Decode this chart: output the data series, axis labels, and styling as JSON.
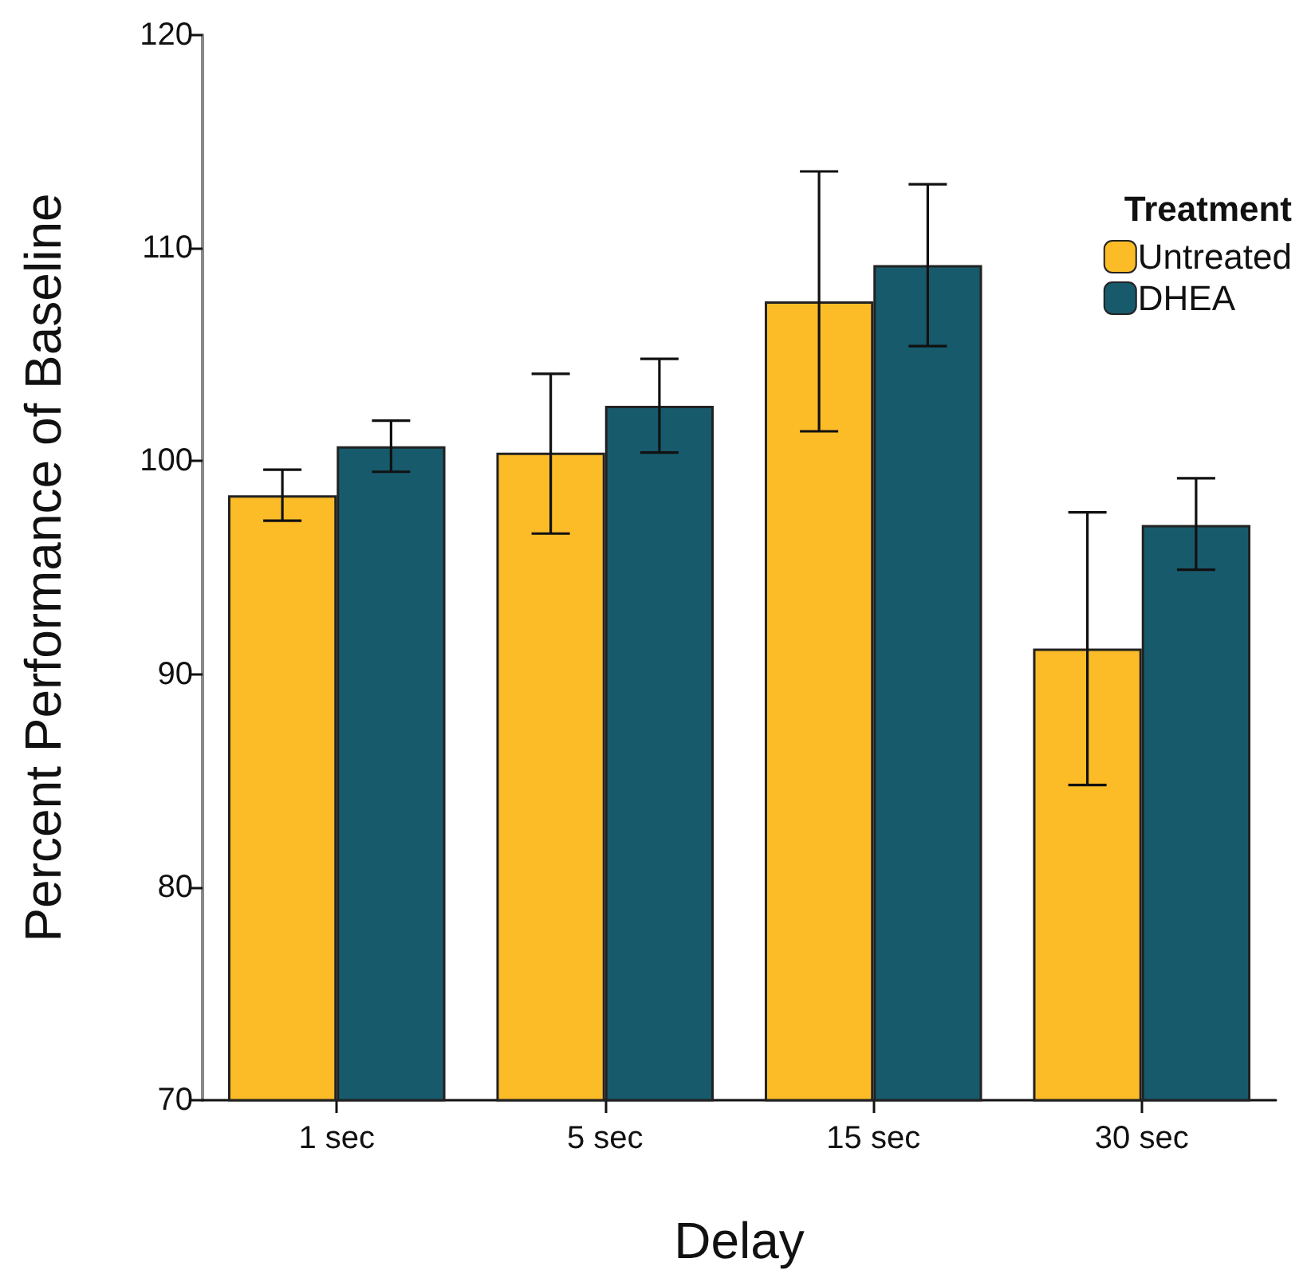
{
  "chart_data": {
    "type": "bar",
    "xlabel": "Delay",
    "ylabel": "Percent Performance of Baseline",
    "legend_title": "Treatment",
    "categories": [
      "1 sec",
      "5 sec",
      "15 sec",
      "30 sec"
    ],
    "series": [
      {
        "name": "Untreated",
        "color": "#fbbc28",
        "values": [
          98.4,
          100.4,
          107.5,
          91.2
        ],
        "errors": [
          [
            97.2,
            99.6
          ],
          [
            96.6,
            104.1
          ],
          [
            101.4,
            113.6
          ],
          [
            84.8,
            97.6
          ]
        ]
      },
      {
        "name": "DHEA",
        "color": "#175a6c",
        "values": [
          100.7,
          102.6,
          109.2,
          97.0
        ],
        "errors": [
          [
            99.5,
            101.9
          ],
          [
            100.4,
            104.8
          ],
          [
            105.4,
            113.0
          ],
          [
            94.9,
            99.2
          ]
        ]
      }
    ],
    "ylim": [
      70,
      120
    ],
    "yticks": [
      70,
      80,
      90,
      100,
      110,
      120
    ],
    "grid": false,
    "legend": "top right"
  }
}
